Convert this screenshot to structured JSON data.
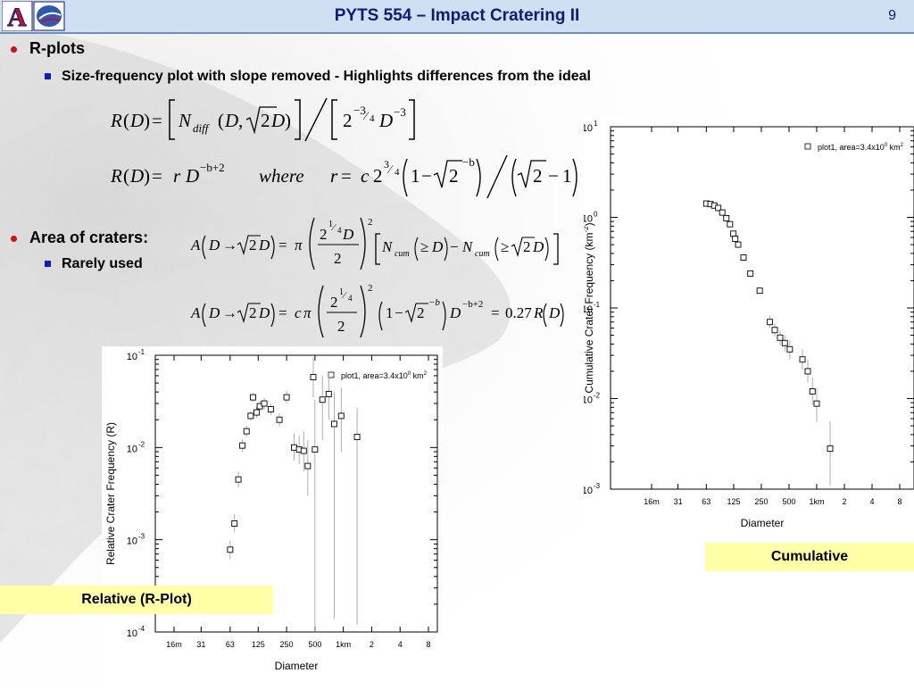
{
  "header": {
    "title": "PYTS 554 – Impact Cratering II",
    "slide_number": "9",
    "logo_letter": "A"
  },
  "bullets": [
    {
      "label": "R-plots",
      "sub": [
        "Size-frequency plot with slope removed - Highlights differences from the ideal"
      ]
    },
    {
      "label": "Area of craters:",
      "sub": [
        "Rarely used"
      ]
    }
  ],
  "equations": {
    "where_word": "where",
    "area_coefficient": "0.27"
  },
  "captions": {
    "cumulative": "Cumulative",
    "relative": "Relative (R-Plot)"
  },
  "chart_data": [
    {
      "type": "scatter",
      "name": "cumulative",
      "ylabel": "Cumulative Crater Frequency (km",
      "ylabel_sup": "-2",
      "ylabel_end": ")",
      "xlabel": "Diameter",
      "x_ticks": [
        "16m",
        "31",
        "63",
        "125",
        "250",
        "500",
        "1km",
        "2",
        "4",
        "8"
      ],
      "x_tick_km": [
        0.016,
        0.031,
        0.063,
        0.125,
        0.25,
        0.5,
        1,
        2,
        4,
        8
      ],
      "y_ticks": [
        {
          "base": "10",
          "exp": "1",
          "v": 10
        },
        {
          "base": "10",
          "exp": "0",
          "v": 1
        },
        {
          "base": "10",
          "exp": "-1",
          "v": 0.1
        },
        {
          "base": "10",
          "exp": "-2",
          "v": 0.01
        },
        {
          "base": "10",
          "exp": "-3",
          "v": 0.001
        }
      ],
      "y_scale": "log",
      "ylim": [
        0.001,
        10
      ],
      "legend": {
        "label": "plot1, area=3.4x10",
        "sup": "0",
        "unit": " km",
        "unit_sup": "2",
        "placement": "top-right"
      },
      "points": [
        {
          "x": 0.063,
          "y": 1.42,
          "lo": 1.42,
          "hi": 1.42
        },
        {
          "x": 0.07,
          "y": 1.4,
          "lo": 1.4,
          "hi": 1.4
        },
        {
          "x": 0.077,
          "y": 1.35,
          "lo": 1.35,
          "hi": 1.35
        },
        {
          "x": 0.085,
          "y": 1.27,
          "lo": 1.27,
          "hi": 1.27
        },
        {
          "x": 0.094,
          "y": 1.13,
          "lo": 1.13,
          "hi": 1.13
        },
        {
          "x": 0.104,
          "y": 0.98,
          "lo": 0.98,
          "hi": 0.98
        },
        {
          "x": 0.114,
          "y": 0.84,
          "lo": 0.84,
          "hi": 0.84
        },
        {
          "x": 0.124,
          "y": 0.66,
          "lo": 0.66,
          "hi": 0.66
        },
        {
          "x": 0.13,
          "y": 0.58,
          "lo": 0.58,
          "hi": 0.58
        },
        {
          "x": 0.14,
          "y": 0.5,
          "lo": 0.5,
          "hi": 0.5
        },
        {
          "x": 0.16,
          "y": 0.36,
          "lo": 0.36,
          "hi": 0.36
        },
        {
          "x": 0.19,
          "y": 0.24,
          "lo": 0.24,
          "hi": 0.24
        },
        {
          "x": 0.24,
          "y": 0.155,
          "lo": 0.155,
          "hi": 0.155
        },
        {
          "x": 0.31,
          "y": 0.07,
          "lo": 0.06,
          "hi": 0.082
        },
        {
          "x": 0.35,
          "y": 0.057,
          "lo": 0.048,
          "hi": 0.067
        },
        {
          "x": 0.4,
          "y": 0.047,
          "lo": 0.039,
          "hi": 0.056
        },
        {
          "x": 0.45,
          "y": 0.041,
          "lo": 0.033,
          "hi": 0.05
        },
        {
          "x": 0.51,
          "y": 0.035,
          "lo": 0.027,
          "hi": 0.044
        },
        {
          "x": 0.7,
          "y": 0.027,
          "lo": 0.021,
          "hi": 0.035
        },
        {
          "x": 0.8,
          "y": 0.02,
          "lo": 0.015,
          "hi": 0.027
        },
        {
          "x": 0.9,
          "y": 0.012,
          "lo": 0.0085,
          "hi": 0.017
        },
        {
          "x": 1.0,
          "y": 0.0088,
          "lo": 0.0055,
          "hi": 0.013
        },
        {
          "x": 1.4,
          "y": 0.0028,
          "lo": 0.0011,
          "hi": 0.0056
        }
      ]
    },
    {
      "type": "scatter",
      "name": "relative",
      "ylabel": "Relative Crater Frequency (R)",
      "xlabel": "Diameter",
      "x_ticks": [
        "16m",
        "31",
        "63",
        "125",
        "250",
        "500",
        "1km",
        "2",
        "4",
        "8"
      ],
      "x_tick_km": [
        0.016,
        0.031,
        0.063,
        0.125,
        0.25,
        0.5,
        1,
        2,
        4,
        8
      ],
      "y_ticks": [
        {
          "base": "10",
          "exp": "-1",
          "v": 0.1
        },
        {
          "base": "10",
          "exp": "-2",
          "v": 0.01
        },
        {
          "base": "10",
          "exp": "-3",
          "v": 0.001
        },
        {
          "base": "10",
          "exp": "-4",
          "v": 0.0001
        }
      ],
      "y_scale": "log",
      "ylim": [
        0.0001,
        0.1
      ],
      "legend": {
        "label": "plot1, area=3.4x10",
        "sup": "0",
        "unit": " km",
        "unit_sup": "2",
        "placement": "top-right"
      },
      "points": [
        {
          "x": 0.063,
          "y": 0.00078,
          "lo": 0.00062,
          "hi": 0.00098
        },
        {
          "x": 0.07,
          "y": 0.0015,
          "lo": 0.0012,
          "hi": 0.0019
        },
        {
          "x": 0.077,
          "y": 0.0045,
          "lo": 0.0037,
          "hi": 0.0055
        },
        {
          "x": 0.085,
          "y": 0.0105,
          "lo": 0.009,
          "hi": 0.0122
        },
        {
          "x": 0.094,
          "y": 0.015,
          "lo": 0.013,
          "hi": 0.0173
        },
        {
          "x": 0.104,
          "y": 0.022,
          "lo": 0.0195,
          "hi": 0.0248
        },
        {
          "x": 0.11,
          "y": 0.035,
          "lo": 0.0315,
          "hi": 0.039
        },
        {
          "x": 0.12,
          "y": 0.024,
          "lo": 0.021,
          "hi": 0.0275
        },
        {
          "x": 0.13,
          "y": 0.028,
          "lo": 0.0245,
          "hi": 0.032
        },
        {
          "x": 0.145,
          "y": 0.03,
          "lo": 0.026,
          "hi": 0.0345
        },
        {
          "x": 0.17,
          "y": 0.026,
          "lo": 0.0225,
          "hi": 0.03
        },
        {
          "x": 0.21,
          "y": 0.02,
          "lo": 0.017,
          "hi": 0.0235
        },
        {
          "x": 0.25,
          "y": 0.035,
          "lo": 0.03,
          "hi": 0.041
        },
        {
          "x": 0.3,
          "y": 0.01,
          "lo": 0.0072,
          "hi": 0.014
        },
        {
          "x": 0.34,
          "y": 0.0095,
          "lo": 0.0066,
          "hi": 0.0135
        },
        {
          "x": 0.38,
          "y": 0.0092,
          "lo": 0.0055,
          "hi": 0.015
        },
        {
          "x": 0.42,
          "y": 0.0063,
          "lo": 0.003,
          "hi": 0.012
        },
        {
          "x": 0.48,
          "y": 0.058,
          "lo": 0.035,
          "hi": 0.095
        },
        {
          "x": 0.5,
          "y": 0.0095,
          "lo": 0.0001,
          "hi": 0.033
        },
        {
          "x": 0.6,
          "y": 0.033,
          "lo": 0.012,
          "hi": 0.06
        },
        {
          "x": 0.7,
          "y": 0.038,
          "lo": 0.02,
          "hi": 0.065
        },
        {
          "x": 0.8,
          "y": 0.018,
          "lo": 0.00014,
          "hi": 0.04
        },
        {
          "x": 0.95,
          "y": 0.022,
          "lo": 0.009,
          "hi": 0.045
        },
        {
          "x": 1.4,
          "y": 0.013,
          "lo": 0.00012,
          "hi": 0.027
        }
      ]
    }
  ]
}
